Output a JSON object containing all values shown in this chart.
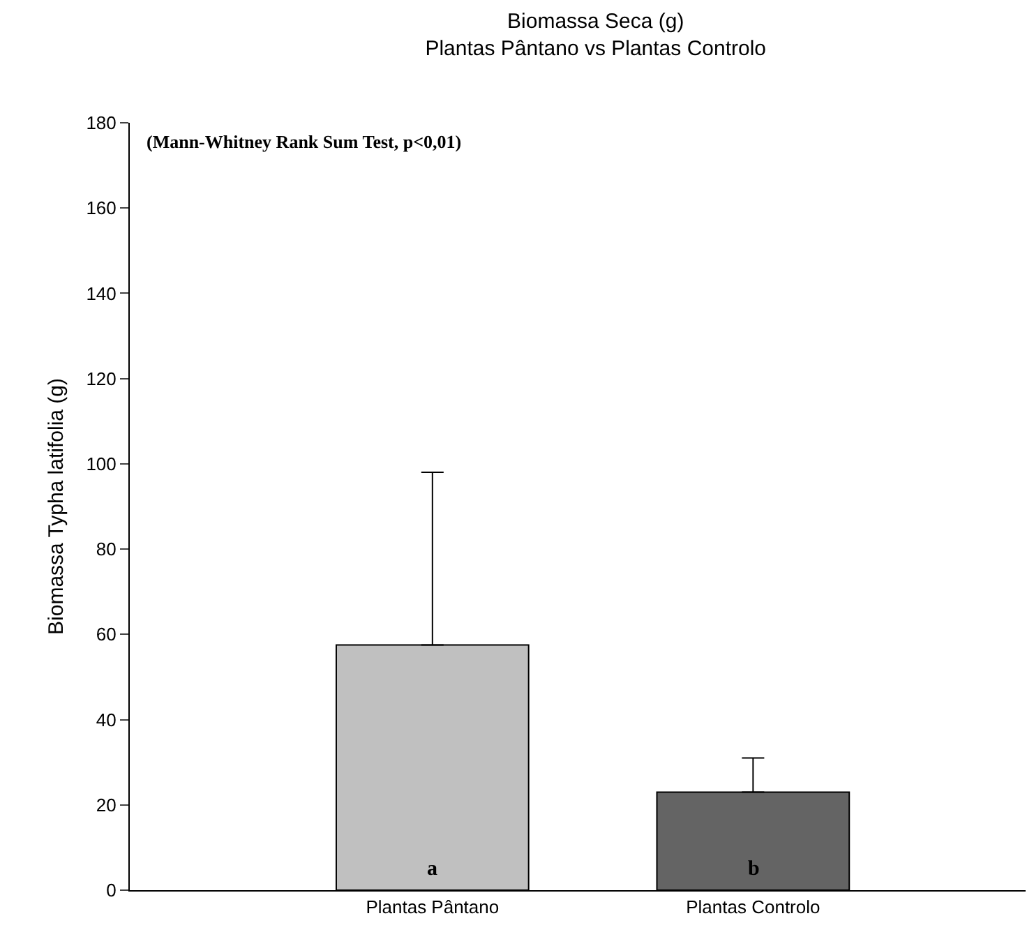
{
  "chart_data": {
    "type": "bar",
    "title": "Biomassa Seca (g)",
    "subtitle": "Plantas Pântano vs Plantas Controlo",
    "ylabel": "Biomassa Typha latifolia (g)",
    "categories": [
      "Plantas Pântano",
      "Plantas Controlo"
    ],
    "values": [
      57.5,
      23
    ],
    "colors": [
      "#c0c0c0",
      "#646464"
    ],
    "errors": [
      [
        57.5,
        98
      ],
      [
        23,
        31
      ]
    ],
    "ylim": [
      0,
      180
    ],
    "yticks": [
      0,
      20,
      40,
      60,
      80,
      100,
      120,
      140,
      160,
      180
    ],
    "grid": false,
    "legend": false,
    "annotations": [
      "(Mann-Whitney Rank Sum Test, p<0,01)",
      "a",
      "b"
    ]
  }
}
